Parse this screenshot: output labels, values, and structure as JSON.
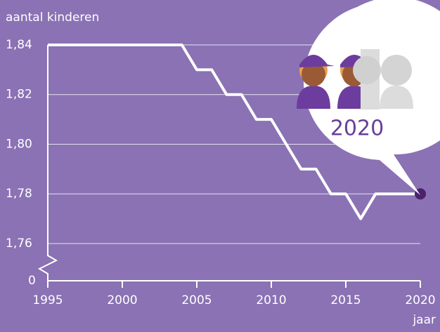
{
  "chart_data": {
    "type": "line",
    "y_label": "aantal kinderen",
    "x_label": "jaar",
    "annotation": "2020",
    "x": [
      1995,
      1996,
      1997,
      1998,
      1999,
      2000,
      2001,
      2002,
      2003,
      2004,
      2005,
      2006,
      2007,
      2008,
      2009,
      2010,
      2011,
      2012,
      2013,
      2014,
      2015,
      2016,
      2017,
      2018,
      2019,
      2020
    ],
    "values": [
      1.84,
      1.84,
      1.84,
      1.84,
      1.84,
      1.84,
      1.84,
      1.84,
      1.84,
      1.84,
      1.83,
      1.83,
      1.82,
      1.82,
      1.81,
      1.81,
      1.8,
      1.79,
      1.79,
      1.78,
      1.78,
      1.77,
      1.78,
      1.78,
      1.78,
      1.78
    ],
    "color": "#ffffff",
    "end_marker_color": "#4b2170",
    "xlim": [
      1995,
      2020
    ],
    "xticks": [
      1995,
      2000,
      2005,
      2010,
      2015,
      2020
    ],
    "ylim": [
      1.745,
      1.84
    ],
    "yticks": [
      {
        "value": 1.76,
        "label": "1,76"
      },
      {
        "value": 1.78,
        "label": "1,78"
      },
      {
        "value": 1.8,
        "label": "1,80"
      },
      {
        "value": 1.82,
        "label": "1,82"
      },
      {
        "value": 1.84,
        "label": "1,84"
      }
    ],
    "y_break_tick": 0,
    "grid": true
  }
}
